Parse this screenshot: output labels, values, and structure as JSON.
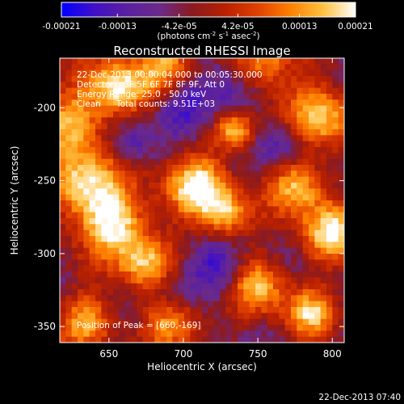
{
  "chart_data": {
    "type": "heatmap",
    "title": "Reconstructed RHESSI Image",
    "xlabel": "Heliocentric X (arcsec)",
    "ylabel": "Heliocentric Y (arcsec)",
    "xlim": [
      617,
      808
    ],
    "ylim": [
      -361,
      -166
    ],
    "x_ticks": [
      650,
      700,
      750,
      800
    ],
    "x_tick_labels": [
      "650",
      "700",
      "750",
      "800"
    ],
    "y_ticks": [
      -200,
      -250,
      -300,
      -350
    ],
    "y_tick_labels": [
      "-200",
      "-250",
      "-300",
      "-350"
    ],
    "colorbar": {
      "range": [
        -0.00021,
        0.00021
      ],
      "tick_values": [
        -0.00021,
        -0.00013,
        -4.2e-05,
        4.2e-05,
        0.00013,
        0.00021
      ],
      "tick_labels": [
        "-0.00021",
        "-0.00013",
        "-4.2e-05",
        "4.2e-05",
        "0.00013",
        "0.00021"
      ],
      "units_base": "(photons cm",
      "units_exp1": "-2",
      "units_mid1": " s",
      "units_exp2": "-1",
      "units_mid2": " asec",
      "units_exp3": "-2",
      "units_end": ")",
      "colors": [
        "#0000ff",
        "#4010c8",
        "#5a20a0",
        "#6a2a8a",
        "#8a1a20",
        "#b82000",
        "#e04000",
        "#ff8000",
        "#ffc040",
        "#ffffff"
      ]
    },
    "annotations": {
      "time_range": "22-Dec-2013 00:00:04.000 to 00:05:30.000",
      "detectors": "Detectors: 3F 5F 6F 7F 8F 9F, Att 0",
      "energy": "Energy Range: 25.0 - 50.0 keV",
      "clean": "Clean",
      "counts": "Total counts: 9.51E+03",
      "peak": "Position of Peak = [660,-169]"
    },
    "peak_position": [
      660,
      -169
    ],
    "grid_resolution": [
      48,
      48
    ],
    "hot_regions_fractional": [
      [
        0.2,
        0.1,
        0.07,
        1.0
      ],
      [
        0.38,
        0.03,
        0.07,
        0.8
      ],
      [
        0.72,
        0.0,
        0.08,
        0.8
      ],
      [
        0.92,
        0.2,
        0.08,
        0.9
      ],
      [
        0.62,
        0.26,
        0.05,
        0.9
      ],
      [
        0.05,
        0.22,
        0.08,
        0.8
      ],
      [
        0.08,
        0.45,
        0.09,
        1.0
      ],
      [
        0.2,
        0.58,
        0.08,
        0.95
      ],
      [
        0.3,
        0.72,
        0.07,
        0.8
      ],
      [
        0.48,
        0.45,
        0.08,
        0.95
      ],
      [
        0.58,
        0.55,
        0.06,
        0.8
      ],
      [
        0.84,
        0.45,
        0.07,
        0.9
      ],
      [
        0.95,
        0.62,
        0.07,
        0.95
      ],
      [
        0.7,
        0.8,
        0.07,
        0.8
      ],
      [
        0.4,
        0.93,
        0.07,
        0.85
      ],
      [
        0.1,
        0.92,
        0.07,
        0.75
      ],
      [
        0.88,
        0.9,
        0.06,
        0.8
      ]
    ],
    "cold_regions_fractional": [
      [
        0.45,
        0.15,
        0.07,
        1.0
      ],
      [
        0.6,
        0.12,
        0.06,
        0.9
      ],
      [
        0.25,
        0.3,
        0.05,
        0.8
      ],
      [
        0.55,
        0.75,
        0.07,
        0.9
      ],
      [
        0.78,
        0.3,
        0.06,
        0.9
      ],
      [
        0.4,
        0.82,
        0.06,
        0.8
      ]
    ]
  },
  "footer": {
    "timestamp": "22-Dec-2013 07:40"
  }
}
